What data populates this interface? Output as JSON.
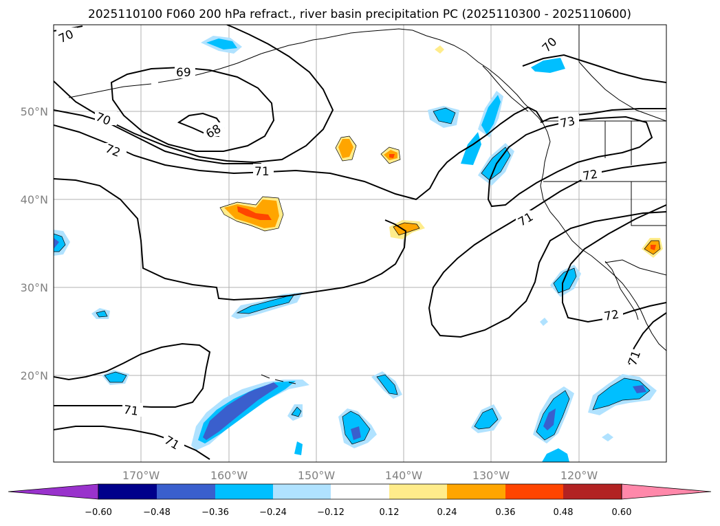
{
  "title": "2025110100 F060 200 hPa refract., river basin precipitation PC (2025110300 - 2025110600)",
  "lat_ticks": [
    "50°N",
    "40°N",
    "30°N",
    "20°N"
  ],
  "lon_ticks": [
    "170°W",
    "160°W",
    "150°W",
    "140°W",
    "130°W",
    "120°W"
  ],
  "contour_labels": [
    "70",
    "69",
    "68",
    "70",
    "72",
    "71",
    "71",
    "72",
    "73",
    "71",
    "72",
    "71",
    "71",
    "70"
  ],
  "colorbar": {
    "colors": [
      "#9932cc",
      "#00008b",
      "#3a5fcd",
      "#00bfff",
      "#b0e2ff",
      "#ffffff",
      "#ffec8b",
      "#ffa500",
      "#ff4500",
      "#b22222",
      "#ff88aa"
    ],
    "ticks": [
      "−0.60",
      "−0.48",
      "−0.36",
      "−0.24",
      "−0.12",
      "0.12",
      "0.24",
      "0.36",
      "0.48",
      "0.60"
    ]
  },
  "colors": {
    "grid": "#b0b0b0",
    "contour": "#000000",
    "tick_text": "#808080"
  }
}
